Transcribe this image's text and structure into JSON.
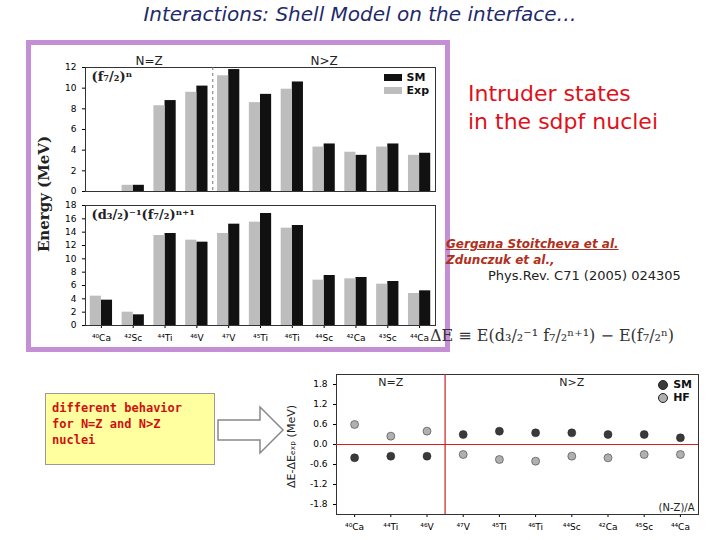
{
  "slide": {
    "title": "Interactions: Shell Model on the interface…",
    "heading": [
      "Intruder states",
      "in the sdpf nuclei"
    ],
    "references": [
      "Gergana Stoitcheva et al.",
      "Zdunczuk et al.,",
      "Phys.Rev. C71 (2005) 024305"
    ],
    "formula": "ΔE ≡ E(d₃/₂⁻¹ f₇/₂ⁿ⁺¹) − E(f₇/₂ⁿ)",
    "note": [
      "different behavior",
      "for N=Z and N>Z",
      "nuclei"
    ]
  },
  "chart_data": [
    {
      "type": "bar",
      "title": "(f₇/₂)ⁿ",
      "ylabel": "Energy (MeV)",
      "categories": [
        "⁴⁰Ca",
        "⁴²Sc",
        "⁴⁴Ti",
        "⁴⁶V",
        "⁴⁷V",
        "⁴⁵Ti",
        "⁴⁶Ti",
        "⁴⁴Sc",
        "⁴²Ca",
        "⁴³Sc",
        "⁴⁴Ca"
      ],
      "series": [
        {
          "name": "SM",
          "color": "#111111",
          "values": [
            null,
            0.6,
            8.8,
            10.2,
            11.8,
            9.4,
            10.6,
            4.6,
            3.5,
            4.6,
            3.7
          ]
        },
        {
          "name": "Exp",
          "color": "#bdbdbd",
          "values": [
            null,
            0.6,
            8.3,
            9.6,
            11.2,
            8.6,
            9.9,
            4.3,
            3.8,
            4.3,
            3.5
          ]
        }
      ],
      "groups": [
        {
          "label": "N=Z",
          "categories": [
            "⁴⁰Ca",
            "⁴²Sc",
            "⁴⁴Ti",
            "⁴⁶V"
          ]
        },
        {
          "label": "N>Z",
          "categories": [
            "⁴⁷V",
            "⁴⁵Ti",
            "⁴⁶Ti",
            "⁴⁴Sc",
            "⁴²Ca",
            "⁴³Sc",
            "⁴⁴Ca"
          ]
        }
      ],
      "ylim": [
        0,
        12
      ],
      "yticks": [
        0,
        2,
        4,
        6,
        8,
        10,
        12
      ],
      "legend": "top-right",
      "tick_labels": "y"
    },
    {
      "type": "bar",
      "title": "(d₃/₂)⁻¹(f₇/₂)ⁿ⁺¹",
      "categories": [
        "⁴⁰Ca",
        "⁴²Sc",
        "⁴⁴Ti",
        "⁴⁶V",
        "⁴⁷V",
        "⁴⁵Ti",
        "⁴⁶Ti",
        "⁴⁴Sc",
        "⁴²Ca",
        "⁴³Sc",
        "⁴⁴Ca"
      ],
      "series": [
        {
          "name": "SM",
          "color": "#111111",
          "values": [
            3.8,
            1.6,
            13.8,
            12.5,
            15.2,
            16.8,
            15.0,
            7.5,
            7.2,
            6.6,
            5.2
          ]
        },
        {
          "name": "Exp",
          "color": "#bdbdbd",
          "values": [
            4.4,
            2.0,
            13.5,
            12.8,
            13.8,
            15.5,
            14.6,
            6.8,
            7.0,
            6.2,
            4.8
          ]
        }
      ],
      "ylim": [
        0,
        18
      ],
      "yticks": [
        0,
        2,
        4,
        6,
        8,
        10,
        12,
        14,
        16,
        18
      ]
    },
    {
      "type": "scatter",
      "xlabel": "(N-Z)/A",
      "ylabel": "ΔE-ΔEₑₓₚ (MeV)",
      "categories": [
        "⁴⁰Ca",
        "⁴⁴Ti",
        "⁴⁶V",
        "⁴⁷V",
        "⁴⁵Ti",
        "⁴⁶Ti",
        "⁴⁴Sc",
        "⁴²Ca",
        "⁴⁵Sc",
        "⁴⁴Ca"
      ],
      "series": [
        {
          "name": "SM",
          "color": "#3a3a3a",
          "marker": "circle",
          "values": [
            -0.4,
            -0.35,
            -0.35,
            0.3,
            0.4,
            0.35,
            0.35,
            0.3,
            0.3,
            0.2
          ]
        },
        {
          "name": "HF",
          "color": "#b0b0b0",
          "marker": "circle",
          "values": [
            0.6,
            0.25,
            0.4,
            -0.3,
            -0.45,
            -0.5,
            -0.35,
            -0.4,
            -0.3,
            -0.3
          ]
        }
      ],
      "groups": [
        {
          "label": "N=Z",
          "categories": [
            "⁴⁰Ca",
            "⁴⁴Ti",
            "⁴⁶V"
          ]
        },
        {
          "label": "N>Z",
          "categories": [
            "⁴⁷V",
            "⁴⁵Ti",
            "⁴⁶Ti",
            "⁴⁴Sc",
            "⁴²Ca",
            "⁴⁵Sc",
            "⁴⁴Ca"
          ]
        }
      ],
      "reference_y": 0,
      "ylim": [
        -2.1,
        2.1
      ],
      "yticks": [
        {
          "value": 1.8,
          "label": "1.8"
        },
        {
          "value": 1.2,
          "label": "1.2"
        },
        {
          "value": 0.6,
          "label": "0.6"
        },
        {
          "value": 0,
          "label": "0.0"
        },
        {
          "value": -0.6,
          "label": "-0.6"
        },
        {
          "value": -1.2,
          "label": "-1.2"
        },
        {
          "value": -1.8,
          "label": "-1.8"
        }
      ],
      "legend": "top-right"
    }
  ]
}
